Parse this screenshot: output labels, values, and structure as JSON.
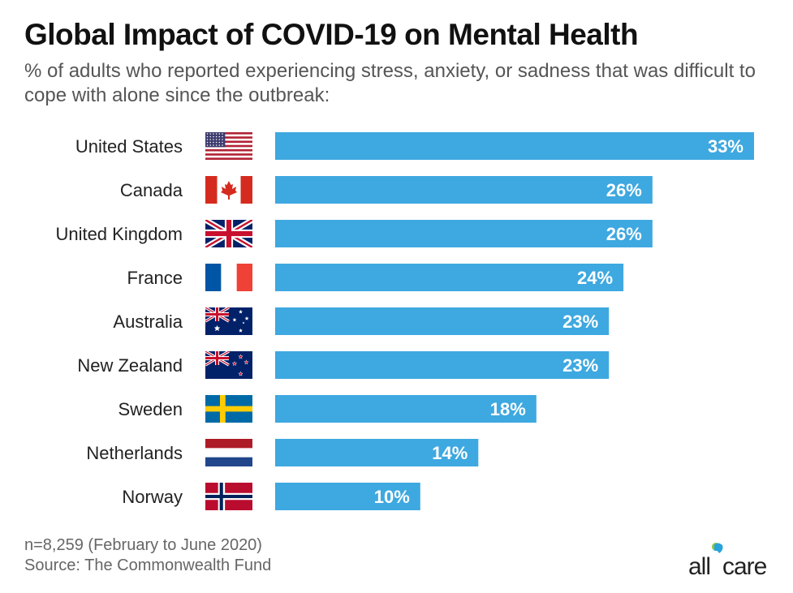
{
  "title": "Global Impact of COVID-19 on Mental Health",
  "subtitle": "% of adults who reported experiencing stress, anxiety, or sadness that was difficult to cope with alone since the outbreak:",
  "footer": {
    "sample": "n=8,259 (February to June 2020)",
    "source": "Source: The Commonwealth Fund"
  },
  "logo": {
    "text": "allcare",
    "name": "allcare-logo"
  },
  "colors": {
    "bar": "#3ea8e0",
    "bar_label": "#ffffff",
    "category_label": "#222222"
  },
  "chart_data": {
    "type": "bar",
    "orientation": "horizontal",
    "title": "Global Impact of COVID-19 on Mental Health",
    "subtitle": "% of adults who reported experiencing stress, anxiety, or sadness that was difficult to cope with alone since the outbreak:",
    "categories": [
      "United States",
      "Canada",
      "United Kingdom",
      "France",
      "Australia",
      "New Zealand",
      "Sweden",
      "Netherlands",
      "Norway"
    ],
    "values": [
      33,
      26,
      26,
      24,
      23,
      23,
      18,
      14,
      10
    ],
    "value_labels": [
      "33%",
      "26%",
      "26%",
      "24%",
      "23%",
      "23%",
      "18%",
      "14%",
      "10%"
    ],
    "flags": [
      "us-flag-icon",
      "canada-flag-icon",
      "uk-flag-icon",
      "france-flag-icon",
      "australia-flag-icon",
      "new-zealand-flag-icon",
      "sweden-flag-icon",
      "netherlands-flag-icon",
      "norway-flag-icon"
    ],
    "unit": "%",
    "xlim": [
      0,
      33
    ],
    "grid": false,
    "legend": "none"
  }
}
